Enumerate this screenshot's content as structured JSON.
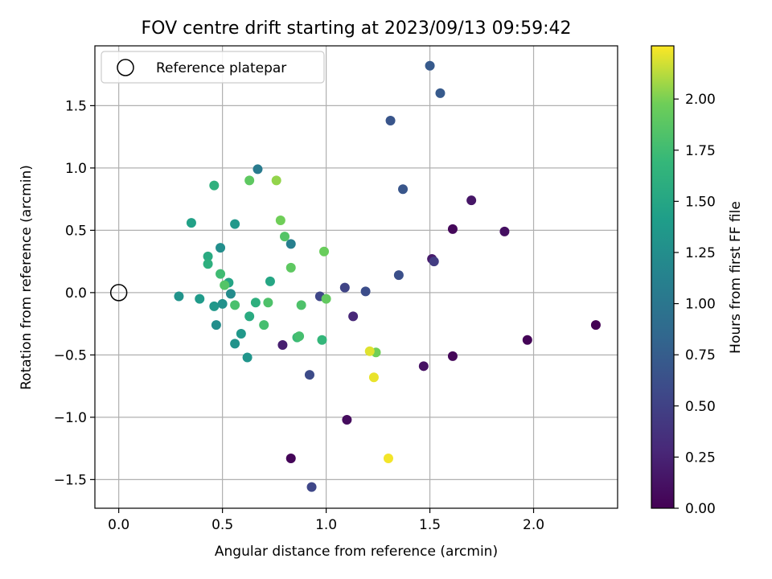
{
  "chart_data": {
    "type": "scatter",
    "title": "FOV centre drift starting at 2023/09/13 09:59:42",
    "xlabel": "Angular distance from reference (arcmin)",
    "ylabel": "Rotation from reference (arcmin)",
    "xlim": [
      -0.115,
      2.405
    ],
    "ylim": [
      -1.73,
      1.98
    ],
    "xticks": [
      0.0,
      0.5,
      1.0,
      1.5,
      2.0
    ],
    "xtick_labels": [
      "0.0",
      "0.5",
      "1.0",
      "1.5",
      "2.0"
    ],
    "yticks": [
      -1.5,
      -1.0,
      -0.5,
      0.0,
      0.5,
      1.0,
      1.5
    ],
    "ytick_labels": [
      "−1.5",
      "−1.0",
      "−0.5",
      "0.0",
      "0.5",
      "1.0",
      "1.5"
    ],
    "grid": true,
    "legend": {
      "position": "upper-left",
      "entries": [
        "Reference platepar"
      ]
    },
    "reference_point": {
      "x": 0.0,
      "y": 0.0
    },
    "colorbar": {
      "label": "Hours from first FF file",
      "colormap": "viridis",
      "range": [
        0.0,
        2.26
      ],
      "ticks": [
        0.0,
        0.25,
        0.5,
        0.75,
        1.0,
        1.25,
        1.5,
        1.75,
        2.0
      ],
      "tick_labels": [
        "0.00",
        "0.25",
        "0.50",
        "0.75",
        "1.00",
        "1.25",
        "1.50",
        "1.75",
        "2.00"
      ]
    },
    "points": [
      {
        "x": 2.3,
        "y": -0.26,
        "c": 0.0
      },
      {
        "x": 1.97,
        "y": -0.38,
        "c": 0.02
      },
      {
        "x": 1.61,
        "y": -0.51,
        "c": 0.04
      },
      {
        "x": 1.61,
        "y": 0.51,
        "c": 0.05
      },
      {
        "x": 1.86,
        "y": 0.49,
        "c": 0.1
      },
      {
        "x": 1.7,
        "y": 0.74,
        "c": 0.15
      },
      {
        "x": 1.51,
        "y": 0.27,
        "c": 0.18
      },
      {
        "x": 1.47,
        "y": -0.59,
        "c": 0.12
      },
      {
        "x": 1.1,
        "y": -1.02,
        "c": 0.08
      },
      {
        "x": 0.83,
        "y": -1.33,
        "c": 0.03
      },
      {
        "x": 0.79,
        "y": -0.42,
        "c": 0.22
      },
      {
        "x": 1.13,
        "y": -0.19,
        "c": 0.28
      },
      {
        "x": 0.93,
        "y": -1.56,
        "c": 0.55
      },
      {
        "x": 0.92,
        "y": -0.66,
        "c": 0.58
      },
      {
        "x": 0.97,
        "y": -0.03,
        "c": 0.55
      },
      {
        "x": 1.09,
        "y": 0.04,
        "c": 0.52
      },
      {
        "x": 1.19,
        "y": 0.01,
        "c": 0.6
      },
      {
        "x": 1.35,
        "y": 0.14,
        "c": 0.62
      },
      {
        "x": 1.52,
        "y": 0.25,
        "c": 0.45
      },
      {
        "x": 1.37,
        "y": 0.83,
        "c": 0.68
      },
      {
        "x": 1.31,
        "y": 1.38,
        "c": 0.67
      },
      {
        "x": 1.5,
        "y": 1.82,
        "c": 0.72
      },
      {
        "x": 1.55,
        "y": 1.6,
        "c": 0.72
      },
      {
        "x": 0.67,
        "y": 0.99,
        "c": 1.05
      },
      {
        "x": 0.83,
        "y": 0.39,
        "c": 1.1
      },
      {
        "x": 0.49,
        "y": 0.36,
        "c": 1.25
      },
      {
        "x": 0.29,
        "y": -0.03,
        "c": 1.3
      },
      {
        "x": 0.39,
        "y": -0.05,
        "c": 1.38
      },
      {
        "x": 0.46,
        "y": -0.11,
        "c": 1.35
      },
      {
        "x": 0.47,
        "y": -0.26,
        "c": 1.25
      },
      {
        "x": 0.5,
        "y": -0.09,
        "c": 1.28
      },
      {
        "x": 0.54,
        "y": -0.01,
        "c": 1.22
      },
      {
        "x": 0.56,
        "y": -0.41,
        "c": 1.3
      },
      {
        "x": 0.59,
        "y": -0.33,
        "c": 1.35
      },
      {
        "x": 0.62,
        "y": -0.52,
        "c": 1.32
      },
      {
        "x": 0.56,
        "y": 0.55,
        "c": 1.35
      },
      {
        "x": 0.35,
        "y": 0.56,
        "c": 1.45
      },
      {
        "x": 0.53,
        "y": 0.08,
        "c": 1.48
      },
      {
        "x": 0.43,
        "y": 0.29,
        "c": 1.55
      },
      {
        "x": 0.43,
        "y": 0.23,
        "c": 1.6
      },
      {
        "x": 0.73,
        "y": 0.09,
        "c": 1.5
      },
      {
        "x": 0.46,
        "y": 0.86,
        "c": 1.62
      },
      {
        "x": 0.63,
        "y": -0.19,
        "c": 1.55
      },
      {
        "x": 0.66,
        "y": -0.08,
        "c": 1.6
      },
      {
        "x": 0.49,
        "y": 0.15,
        "c": 1.75
      },
      {
        "x": 0.51,
        "y": 0.06,
        "c": 1.85
      },
      {
        "x": 0.56,
        "y": -0.1,
        "c": 1.8
      },
      {
        "x": 0.7,
        "y": -0.26,
        "c": 1.78
      },
      {
        "x": 0.72,
        "y": -0.08,
        "c": 1.82
      },
      {
        "x": 0.86,
        "y": -0.36,
        "c": 1.72
      },
      {
        "x": 0.87,
        "y": -0.35,
        "c": 1.78
      },
      {
        "x": 0.88,
        "y": -0.1,
        "c": 1.82
      },
      {
        "x": 0.98,
        "y": -0.38,
        "c": 1.68
      },
      {
        "x": 1.0,
        "y": -0.05,
        "c": 1.92
      },
      {
        "x": 0.99,
        "y": 0.33,
        "c": 1.95
      },
      {
        "x": 0.83,
        "y": 0.2,
        "c": 1.9
      },
      {
        "x": 0.8,
        "y": 0.45,
        "c": 1.85
      },
      {
        "x": 0.78,
        "y": 0.58,
        "c": 1.98
      },
      {
        "x": 0.63,
        "y": 0.9,
        "c": 1.9
      },
      {
        "x": 0.76,
        "y": 0.9,
        "c": 2.05
      },
      {
        "x": 1.24,
        "y": -0.48,
        "c": 1.98
      },
      {
        "x": 1.21,
        "y": -0.47,
        "c": 2.2
      },
      {
        "x": 1.23,
        "y": -0.68,
        "c": 2.22
      },
      {
        "x": 1.3,
        "y": -1.33,
        "c": 2.24
      }
    ]
  }
}
